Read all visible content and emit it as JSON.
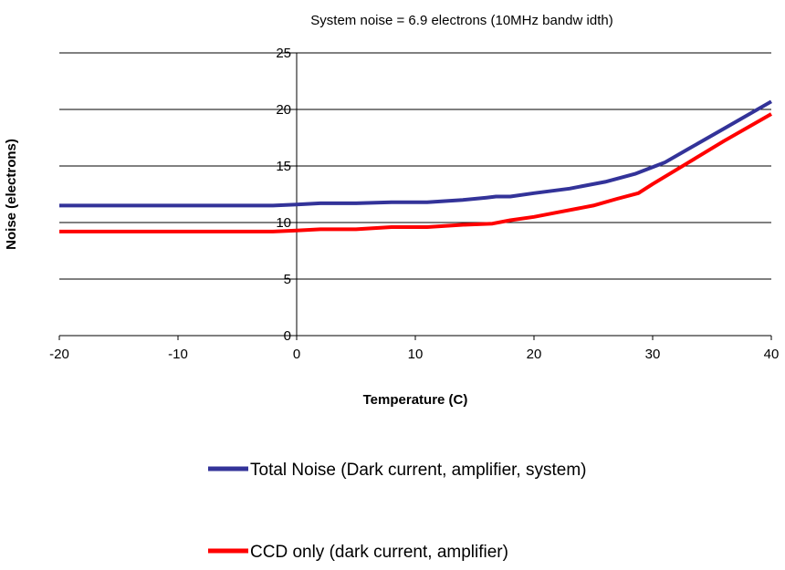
{
  "chart_data": {
    "type": "line",
    "subtitle": "System noise = 6.9 electrons (10MHz bandw idth)",
    "xlabel": "Temperature (C)",
    "ylabel": "Noise (electrons)",
    "xlim": [
      -20,
      40
    ],
    "ylim": [
      0,
      25
    ],
    "x_ticks": [
      -20,
      -10,
      0,
      10,
      20,
      30,
      40
    ],
    "y_ticks": [
      0,
      5,
      10,
      15,
      20,
      25
    ],
    "grid": "horizontal",
    "legend_position": "bottom",
    "series": [
      {
        "name": "Total Noise (Dark current, amplifier, system)",
        "color": "#333399",
        "points": [
          [
            -20,
            11.5
          ],
          [
            -10,
            11.5
          ],
          [
            -2,
            11.5
          ],
          [
            0,
            11.6
          ],
          [
            2,
            11.7
          ],
          [
            5,
            11.7
          ],
          [
            8,
            11.8
          ],
          [
            11,
            11.8
          ],
          [
            14,
            12.0
          ],
          [
            16,
            12.2
          ],
          [
            16.8,
            12.3
          ],
          [
            18,
            12.3
          ],
          [
            20,
            12.6
          ],
          [
            23,
            13.0
          ],
          [
            26,
            13.6
          ],
          [
            28.5,
            14.3
          ],
          [
            31,
            15.3
          ],
          [
            33,
            16.5
          ],
          [
            36,
            18.3
          ],
          [
            40,
            20.7
          ]
        ]
      },
      {
        "name": "CCD only (dark current, amplifier)",
        "color": "#ff0000",
        "points": [
          [
            -20,
            9.2
          ],
          [
            -10,
            9.2
          ],
          [
            -2,
            9.2
          ],
          [
            0,
            9.3
          ],
          [
            2,
            9.4
          ],
          [
            5,
            9.4
          ],
          [
            8,
            9.6
          ],
          [
            11,
            9.6
          ],
          [
            14,
            9.8
          ],
          [
            16.5,
            9.9
          ],
          [
            18,
            10.2
          ],
          [
            20,
            10.5
          ],
          [
            22,
            10.9
          ],
          [
            25,
            11.5
          ],
          [
            27,
            12.1
          ],
          [
            28.8,
            12.6
          ],
          [
            30,
            13.4
          ],
          [
            33,
            15.3
          ],
          [
            36,
            17.2
          ],
          [
            40,
            19.6
          ]
        ]
      }
    ]
  }
}
